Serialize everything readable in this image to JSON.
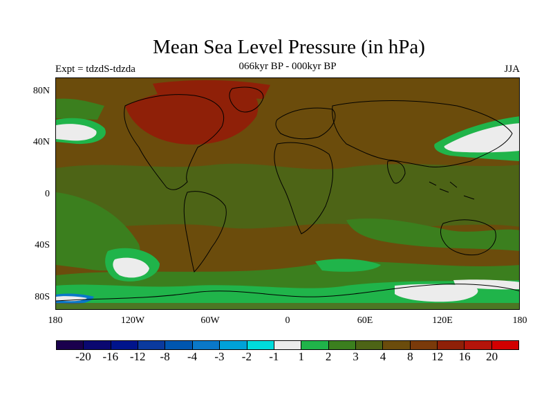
{
  "title": "Mean Sea Level Pressure (in hPa)",
  "left_label": "Expt = tdzdS-tdzda",
  "center_label": "066kyr BP - 000kyr BP",
  "right_label": "JJA",
  "map": {
    "background_color": "#6b4c0c",
    "lat_ticks": [
      "80N",
      "40N",
      "0",
      "40S",
      "80S"
    ],
    "lon_ticks": [
      "180",
      "120W",
      "60W",
      "0",
      "60E",
      "120E",
      "180"
    ]
  },
  "colorbar": {
    "colors": [
      "#1a004d",
      "#0a0870",
      "#00148c",
      "#0a3a9e",
      "#0056b0",
      "#0a78c8",
      "#00a2d8",
      "#00dcdc",
      "#ececec",
      "#20b44a",
      "#3b7f1e",
      "#4d6416",
      "#6b4c0c",
      "#7a3a0a",
      "#8f2008",
      "#b4140a",
      "#d20000"
    ],
    "labels": [
      "-20",
      "-16",
      "-12",
      "-8",
      "-4",
      "-3",
      "-2",
      "-1",
      "1",
      "2",
      "3",
      "4",
      "8",
      "12",
      "16",
      "20"
    ]
  }
}
